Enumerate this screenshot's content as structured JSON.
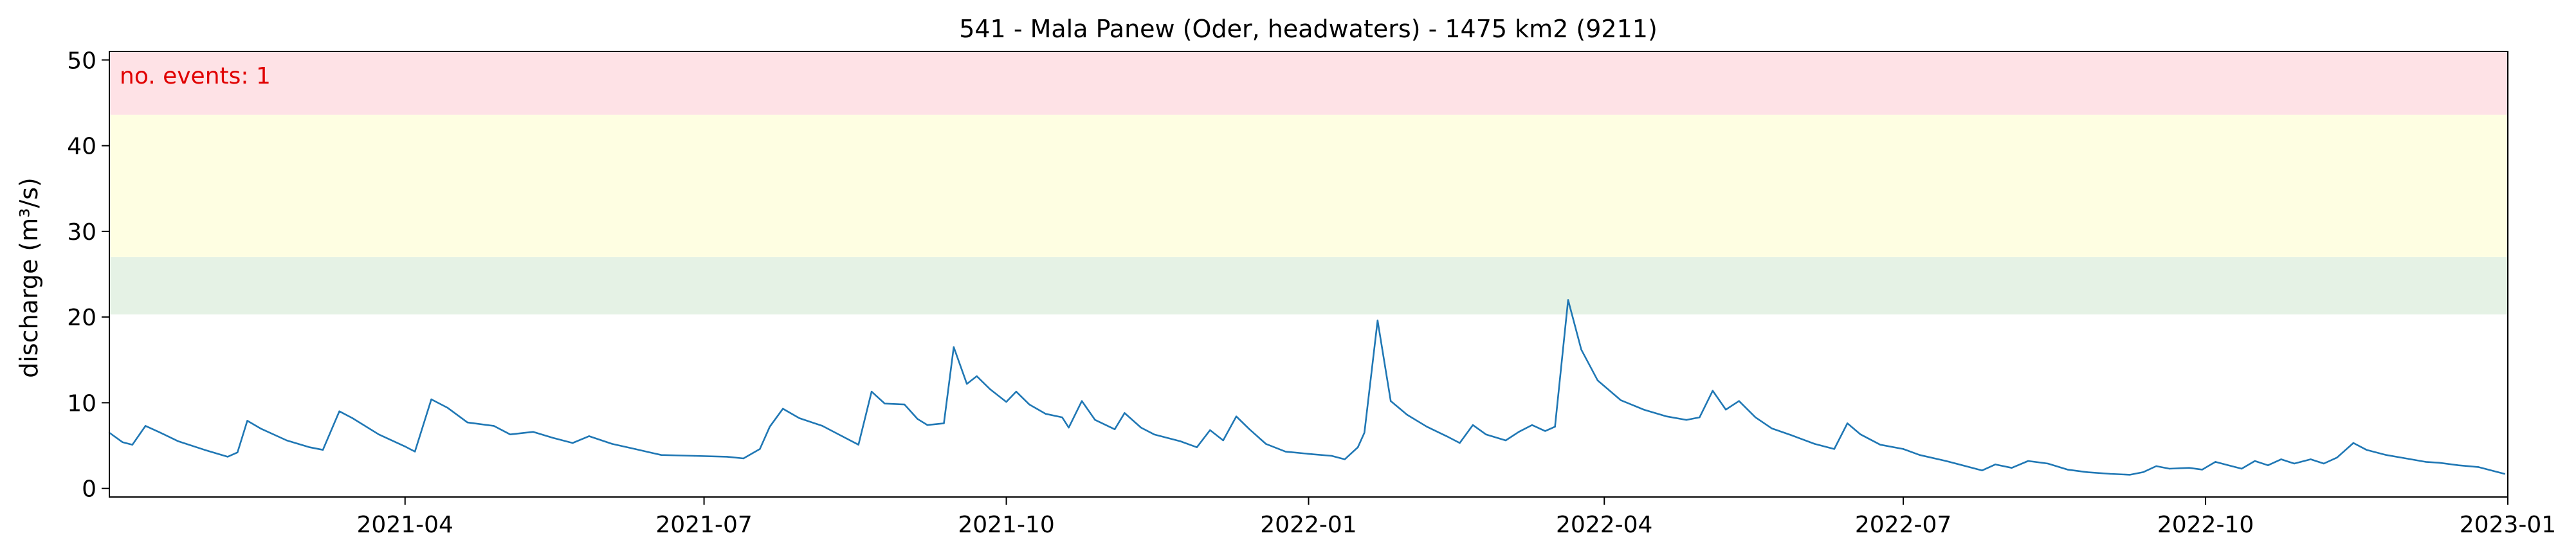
{
  "chart_data": {
    "type": "line",
    "title": "541 - Mala Panew (Oder, headwaters) - 1475 km2 (9211)",
    "xlabel": "",
    "ylabel": "discharge (m³/s)",
    "xlim": [
      "2021-01-01",
      "2023-01-01"
    ],
    "ylim": [
      -1,
      51
    ],
    "grid": false,
    "legend": "none",
    "x_ticks": [
      "2021-04",
      "2021-07",
      "2021-10",
      "2022-01",
      "2022-04",
      "2022-07",
      "2022-10",
      "2023-01"
    ],
    "y_ticks": [
      0,
      10,
      20,
      30,
      40,
      50
    ],
    "annotation": "no. events: 1",
    "threshold_bands": [
      {
        "from": 20.3,
        "to": 27.0,
        "color": "#e5f2e5"
      },
      {
        "from": 27.0,
        "to": 43.6,
        "color": "#fefee2"
      },
      {
        "from": 43.6,
        "to": 51.0,
        "color": "#fee2e6"
      }
    ],
    "series": [
      {
        "color": "#1f77b4",
        "points": [
          [
            "2021-01-01",
            6.5
          ],
          [
            "2021-01-05",
            5.4
          ],
          [
            "2021-01-08",
            5.1
          ],
          [
            "2021-01-12",
            7.3
          ],
          [
            "2021-01-16",
            6.6
          ],
          [
            "2021-01-22",
            5.5
          ],
          [
            "2021-01-30",
            4.5
          ],
          [
            "2021-02-06",
            3.7
          ],
          [
            "2021-02-09",
            4.2
          ],
          [
            "2021-02-12",
            7.9
          ],
          [
            "2021-02-16",
            7.0
          ],
          [
            "2021-02-24",
            5.6
          ],
          [
            "2021-03-03",
            4.8
          ],
          [
            "2021-03-07",
            4.5
          ],
          [
            "2021-03-12",
            9.0
          ],
          [
            "2021-03-16",
            8.2
          ],
          [
            "2021-03-24",
            6.3
          ],
          [
            "2021-04-01",
            4.9
          ],
          [
            "2021-04-04",
            4.3
          ],
          [
            "2021-04-09",
            10.4
          ],
          [
            "2021-04-14",
            9.4
          ],
          [
            "2021-04-20",
            7.7
          ],
          [
            "2021-04-28",
            7.3
          ],
          [
            "2021-05-03",
            6.3
          ],
          [
            "2021-05-10",
            6.6
          ],
          [
            "2021-05-16",
            5.9
          ],
          [
            "2021-05-22",
            5.3
          ],
          [
            "2021-05-27",
            6.1
          ],
          [
            "2021-06-03",
            5.2
          ],
          [
            "2021-06-10",
            4.6
          ],
          [
            "2021-06-18",
            3.9
          ],
          [
            "2021-06-28",
            3.8
          ],
          [
            "2021-07-08",
            3.7
          ],
          [
            "2021-07-13",
            3.5
          ],
          [
            "2021-07-18",
            4.6
          ],
          [
            "2021-07-21",
            7.2
          ],
          [
            "2021-07-25",
            9.3
          ],
          [
            "2021-07-30",
            8.2
          ],
          [
            "2021-08-06",
            7.3
          ],
          [
            "2021-08-12",
            6.1
          ],
          [
            "2021-08-17",
            5.1
          ],
          [
            "2021-08-21",
            11.3
          ],
          [
            "2021-08-25",
            9.9
          ],
          [
            "2021-08-31",
            9.8
          ],
          [
            "2021-09-04",
            8.1
          ],
          [
            "2021-09-07",
            7.4
          ],
          [
            "2021-09-12",
            7.6
          ],
          [
            "2021-09-15",
            16.5
          ],
          [
            "2021-09-19",
            12.2
          ],
          [
            "2021-09-22",
            13.1
          ],
          [
            "2021-09-26",
            11.6
          ],
          [
            "2021-10-01",
            10.1
          ],
          [
            "2021-10-04",
            11.3
          ],
          [
            "2021-10-08",
            9.8
          ],
          [
            "2021-10-13",
            8.7
          ],
          [
            "2021-10-18",
            8.3
          ],
          [
            "2021-10-20",
            7.1
          ],
          [
            "2021-10-24",
            10.2
          ],
          [
            "2021-10-28",
            8.0
          ],
          [
            "2021-11-03",
            6.9
          ],
          [
            "2021-11-06",
            8.8
          ],
          [
            "2021-11-11",
            7.1
          ],
          [
            "2021-11-15",
            6.3
          ],
          [
            "2021-11-23",
            5.5
          ],
          [
            "2021-11-28",
            4.8
          ],
          [
            "2021-12-02",
            6.8
          ],
          [
            "2021-12-06",
            5.6
          ],
          [
            "2021-12-10",
            8.4
          ],
          [
            "2021-12-14",
            6.9
          ],
          [
            "2021-12-19",
            5.2
          ],
          [
            "2021-12-25",
            4.3
          ],
          [
            "2022-01-02",
            4.0
          ],
          [
            "2022-01-08",
            3.8
          ],
          [
            "2022-01-12",
            3.4
          ],
          [
            "2022-01-16",
            4.8
          ],
          [
            "2022-01-18",
            6.5
          ],
          [
            "2022-01-22",
            19.6
          ],
          [
            "2022-01-26",
            10.2
          ],
          [
            "2022-01-31",
            8.6
          ],
          [
            "2022-02-06",
            7.2
          ],
          [
            "2022-02-12",
            6.1
          ],
          [
            "2022-02-16",
            5.3
          ],
          [
            "2022-02-20",
            7.4
          ],
          [
            "2022-02-24",
            6.3
          ],
          [
            "2022-03-02",
            5.6
          ],
          [
            "2022-03-06",
            6.6
          ],
          [
            "2022-03-10",
            7.4
          ],
          [
            "2022-03-14",
            6.7
          ],
          [
            "2022-03-17",
            7.2
          ],
          [
            "2022-03-21",
            22.0
          ],
          [
            "2022-03-25",
            16.2
          ],
          [
            "2022-03-30",
            12.6
          ],
          [
            "2022-04-06",
            10.3
          ],
          [
            "2022-04-13",
            9.2
          ],
          [
            "2022-04-20",
            8.4
          ],
          [
            "2022-04-26",
            8.0
          ],
          [
            "2022-04-30",
            8.3
          ],
          [
            "2022-05-04",
            11.4
          ],
          [
            "2022-05-08",
            9.2
          ],
          [
            "2022-05-12",
            10.2
          ],
          [
            "2022-05-17",
            8.3
          ],
          [
            "2022-05-22",
            7.0
          ],
          [
            "2022-05-28",
            6.2
          ],
          [
            "2022-06-04",
            5.2
          ],
          [
            "2022-06-10",
            4.6
          ],
          [
            "2022-06-14",
            7.6
          ],
          [
            "2022-06-18",
            6.3
          ],
          [
            "2022-06-24",
            5.1
          ],
          [
            "2022-07-01",
            4.6
          ],
          [
            "2022-07-06",
            3.9
          ],
          [
            "2022-07-14",
            3.2
          ],
          [
            "2022-07-20",
            2.6
          ],
          [
            "2022-07-25",
            2.1
          ],
          [
            "2022-07-29",
            2.8
          ],
          [
            "2022-08-03",
            2.4
          ],
          [
            "2022-08-08",
            3.2
          ],
          [
            "2022-08-14",
            2.9
          ],
          [
            "2022-08-20",
            2.2
          ],
          [
            "2022-08-26",
            1.9
          ],
          [
            "2022-09-02",
            1.7
          ],
          [
            "2022-09-08",
            1.6
          ],
          [
            "2022-09-12",
            1.9
          ],
          [
            "2022-09-16",
            2.6
          ],
          [
            "2022-09-20",
            2.3
          ],
          [
            "2022-09-26",
            2.4
          ],
          [
            "2022-09-30",
            2.2
          ],
          [
            "2022-10-04",
            3.1
          ],
          [
            "2022-10-08",
            2.7
          ],
          [
            "2022-10-12",
            2.3
          ],
          [
            "2022-10-16",
            3.2
          ],
          [
            "2022-10-20",
            2.7
          ],
          [
            "2022-10-24",
            3.4
          ],
          [
            "2022-10-28",
            2.9
          ],
          [
            "2022-11-02",
            3.4
          ],
          [
            "2022-11-06",
            2.9
          ],
          [
            "2022-11-10",
            3.6
          ],
          [
            "2022-11-15",
            5.3
          ],
          [
            "2022-11-19",
            4.5
          ],
          [
            "2022-11-25",
            3.9
          ],
          [
            "2022-12-01",
            3.5
          ],
          [
            "2022-12-07",
            3.1
          ],
          [
            "2022-12-11",
            3.0
          ],
          [
            "2022-12-17",
            2.7
          ],
          [
            "2022-12-23",
            2.5
          ],
          [
            "2022-12-29",
            1.9
          ],
          [
            "2022-12-31",
            1.7
          ]
        ]
      }
    ]
  }
}
